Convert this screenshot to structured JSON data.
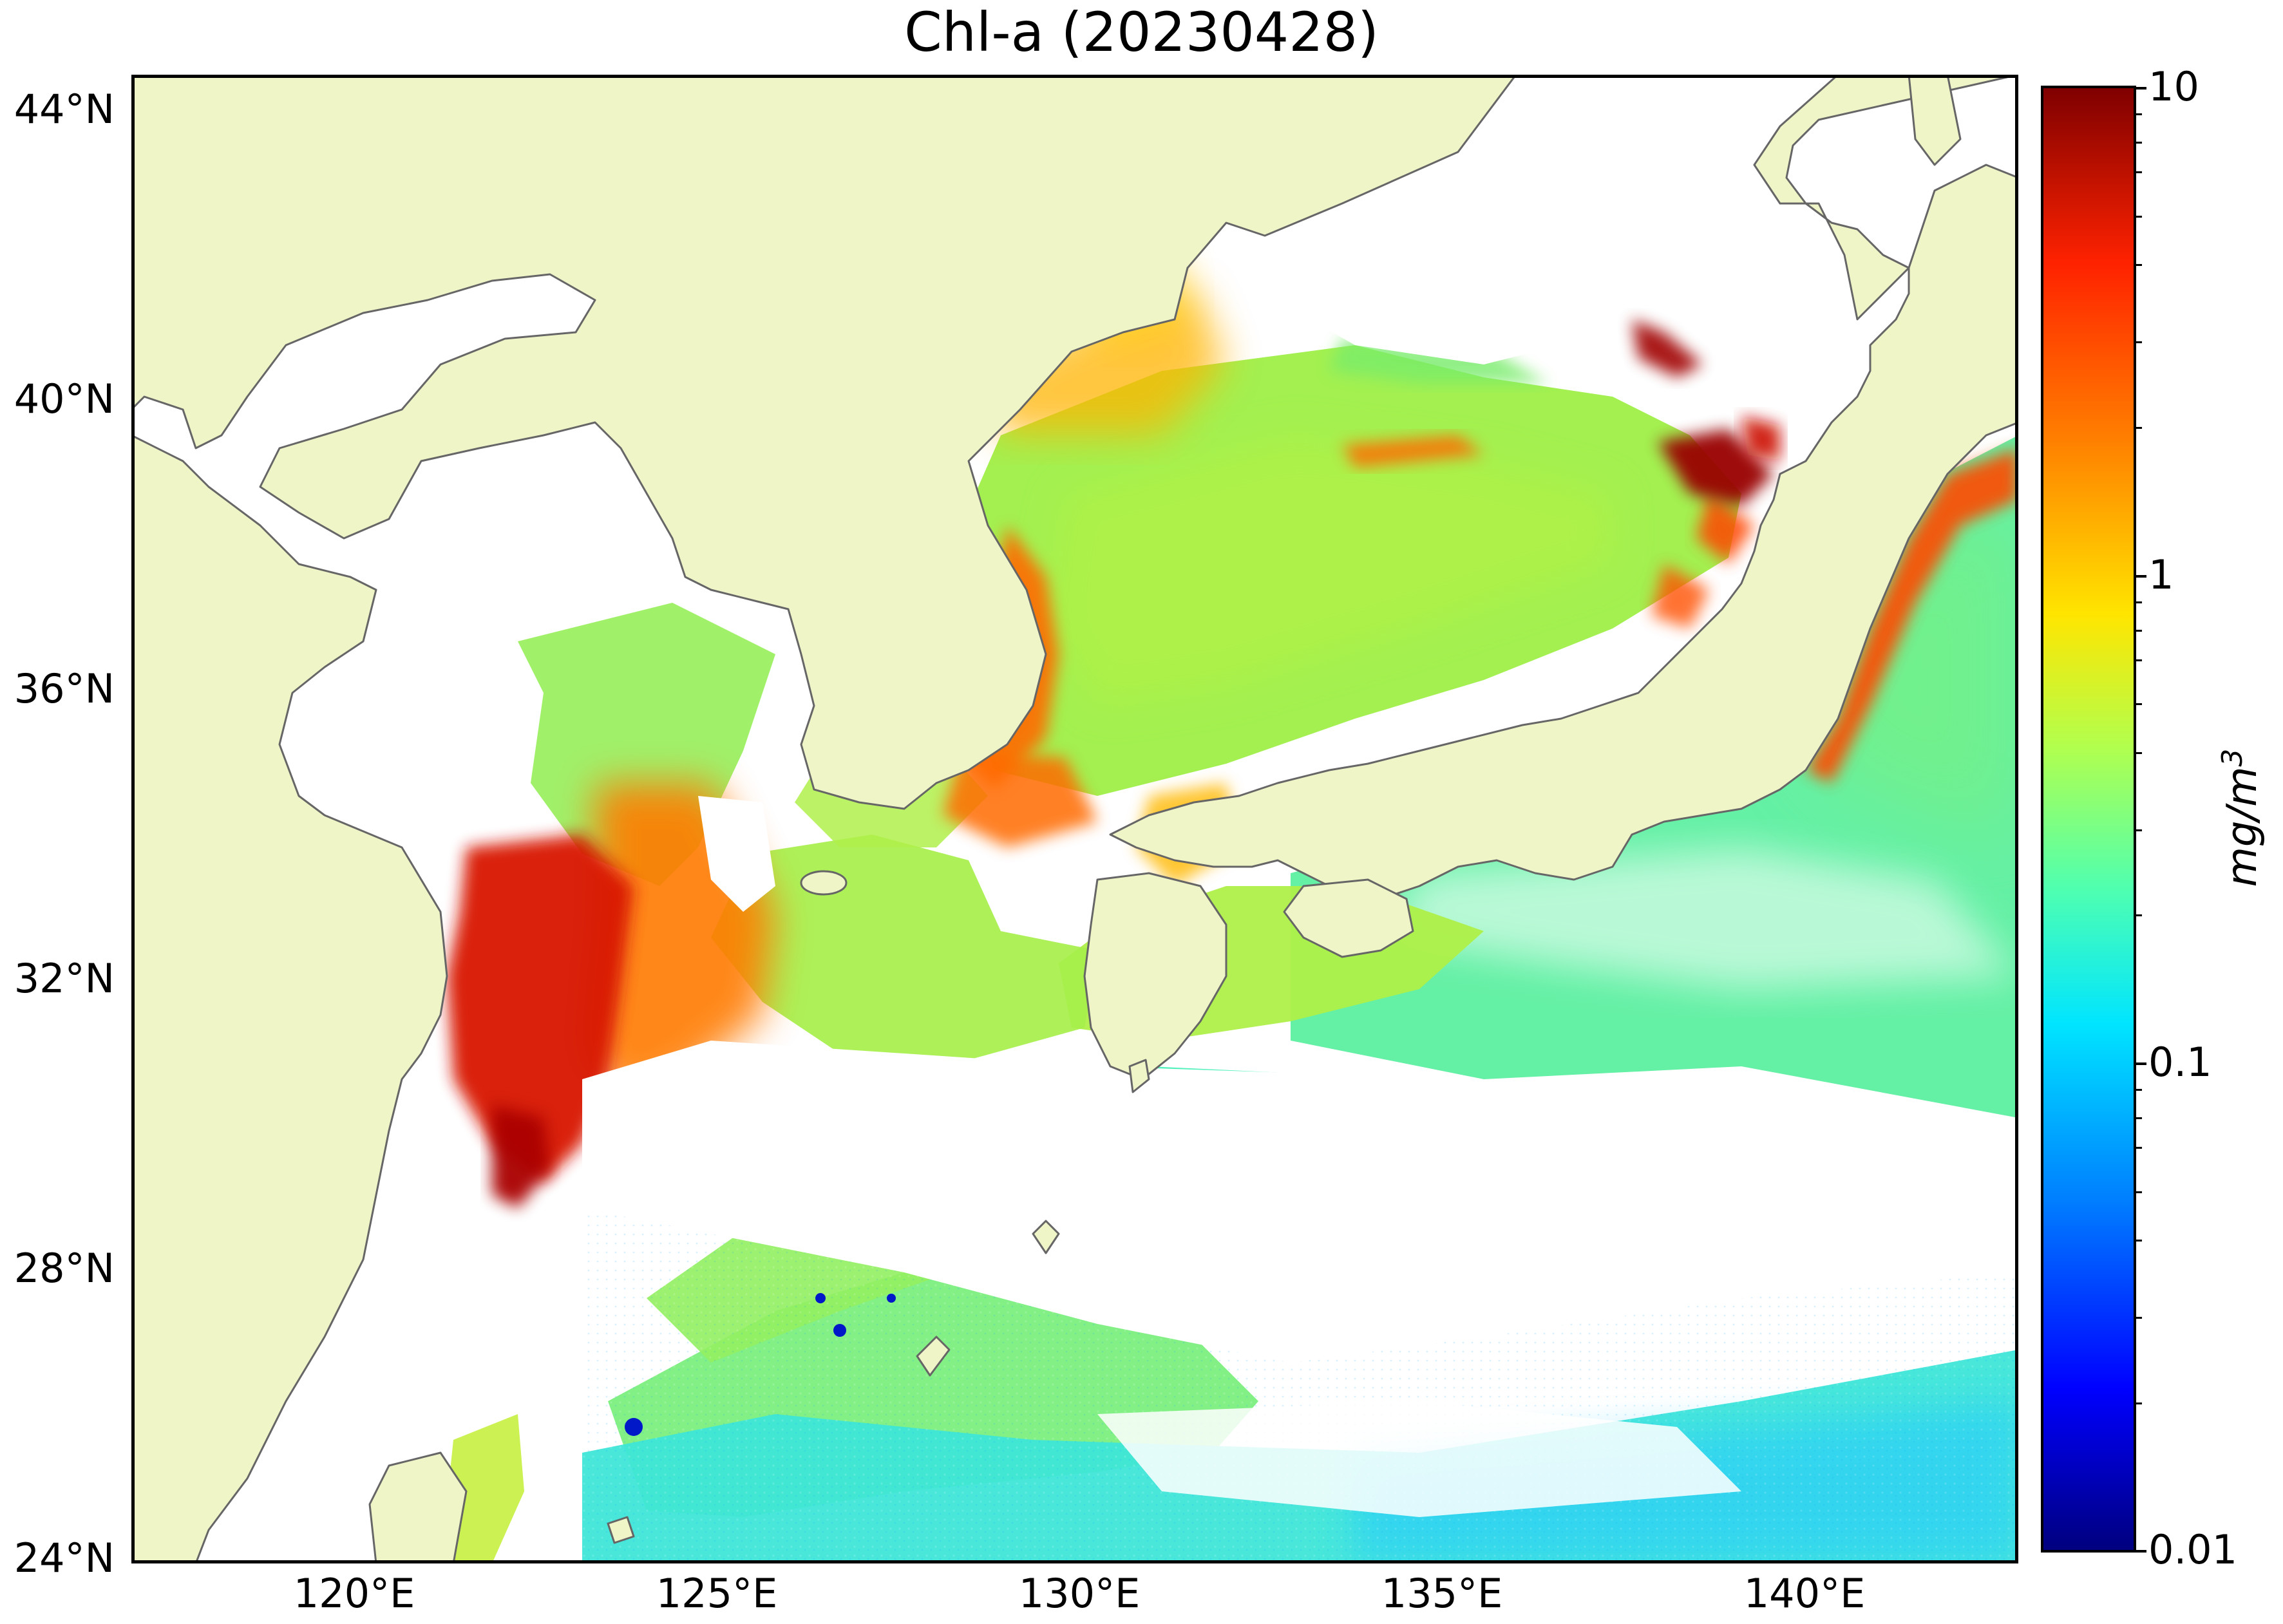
{
  "title": "Chl-a (20230428)",
  "lat_axis": {
    "unit_suffix": "°N",
    "ticks": [
      {
        "label": "44°N",
        "value": 44
      },
      {
        "label": "40°N",
        "value": 40
      },
      {
        "label": "36°N",
        "value": 36
      },
      {
        "label": "32°N",
        "value": 32
      },
      {
        "label": "28°N",
        "value": 28
      },
      {
        "label": "24°N",
        "value": 24
      }
    ]
  },
  "lon_axis": {
    "unit_suffix": "°E",
    "ticks": [
      {
        "label": "120°E",
        "value": 120
      },
      {
        "label": "125°E",
        "value": 125
      },
      {
        "label": "130°E",
        "value": 130
      },
      {
        "label": "135°E",
        "value": 135
      },
      {
        "label": "140°E",
        "value": 140
      }
    ]
  },
  "extent": {
    "lon_min": 117,
    "lon_max": 143,
    "lat_min": 24,
    "lat_max": 44.5
  },
  "colorbar": {
    "scale": "log",
    "ticks": [
      "10",
      "1",
      "0.1",
      "0.01"
    ],
    "min": 0.01,
    "max": 10,
    "unit": "mg/m",
    "unit_sup": "3",
    "colormap": "jet"
  },
  "colors": {
    "land": "#f0f5c8",
    "coastline": "#666666",
    "no_data": "#ffffff"
  }
}
